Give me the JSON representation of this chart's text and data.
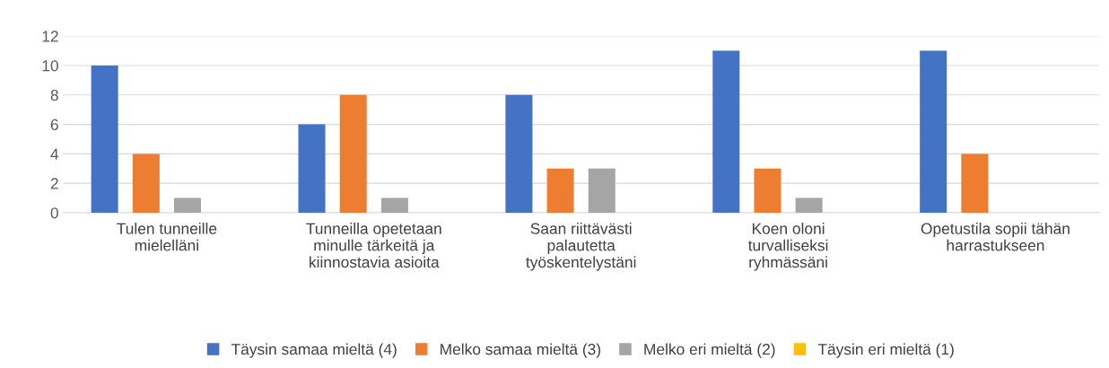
{
  "chart_data": {
    "type": "bar",
    "categories": [
      "Tulen tunneille mielelläni",
      "Tunneilla opetetaan minulle tärkeitä ja kiinnostavia asioita",
      "Saan riittävästi palautetta työskentelystäni",
      "Koen oloni turvalliseksi ryhmässäni",
      "Opetustila sopii tähän harrastukseen"
    ],
    "series": [
      {
        "name": "Täysin samaa mieltä (4)",
        "color": "#4472c4",
        "values": [
          10,
          6,
          8,
          11,
          11
        ]
      },
      {
        "name": "Melko samaa mieltä (3)",
        "color": "#ed7d31",
        "values": [
          4,
          8,
          3,
          3,
          4
        ]
      },
      {
        "name": "Melko eri mieltä (2)",
        "color": "#a5a5a5",
        "values": [
          1,
          1,
          3,
          1,
          0
        ]
      },
      {
        "name": "Täysin eri mieltä (1)",
        "color": "#ffc000",
        "values": [
          0,
          0,
          0,
          0,
          0
        ]
      }
    ],
    "ylim": [
      0,
      12
    ],
    "yticks": [
      0,
      2,
      4,
      6,
      8,
      10,
      12
    ],
    "grid": "y",
    "legend": "bottom"
  }
}
